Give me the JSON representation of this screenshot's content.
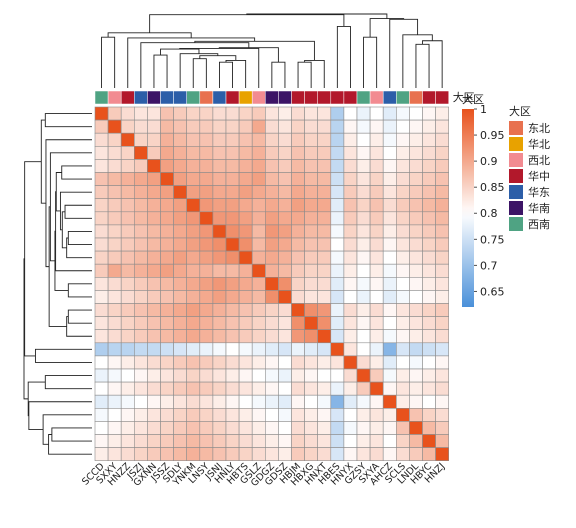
{
  "chart_data": {
    "type": "heatmap",
    "title": "",
    "labels": [
      "SCCD",
      "SXXY",
      "HNZZ",
      "JSZJ",
      "GXNN",
      "JSSZ",
      "SDLY",
      "YNKM",
      "LNSY",
      "JSNJ",
      "HNLY",
      "HBTS",
      "GSLZ",
      "GDGZ",
      "GDSZ",
      "HBJM",
      "HBXG",
      "HNXT",
      "HBES",
      "HNYX",
      "GZSY",
      "SXYA",
      "AHCZ",
      "SCLS",
      "LNDL",
      "HBYC",
      "HNZJ"
    ],
    "region_legend_title": "大区",
    "regions": [
      {
        "name": "东北",
        "color": "#E8714F"
      },
      {
        "name": "华北",
        "color": "#E8A200"
      },
      {
        "name": "西北",
        "color": "#F28B91"
      },
      {
        "name": "华中",
        "color": "#B2182B"
      },
      {
        "name": "华东",
        "color": "#2C5EA8"
      },
      {
        "name": "华南",
        "color": "#3C1466"
      },
      {
        "name": "西南",
        "color": "#4FA383"
      }
    ],
    "column_regions": [
      6,
      2,
      3,
      4,
      5,
      4,
      4,
      6,
      0,
      4,
      3,
      1,
      2,
      5,
      5,
      3,
      3,
      3,
      3,
      3,
      6,
      2,
      4,
      6,
      0,
      3,
      3
    ],
    "colorbar": {
      "title": "大区",
      "min": 0.62,
      "max": 1,
      "ticks": [
        1,
        0.95,
        0.9,
        0.85,
        0.8,
        0.75,
        0.7,
        0.65
      ],
      "low_color": "#4A90D9",
      "mid_color": "#FFFFFF",
      "high_color": "#E8521C",
      "mid_value": 0.8
    },
    "group_a_size": 18,
    "values": [
      [
        1,
        0.86,
        0.84,
        0.83,
        0.83,
        0.87,
        0.86,
        0.85,
        0.85,
        0.84,
        0.84,
        0.85,
        0.86,
        0.83,
        0.82,
        0.84,
        0.83,
        0.83,
        0.72,
        0.8,
        0.78,
        0.8,
        0.77,
        0.79,
        0.8,
        0.81,
        0.82
      ],
      [
        0.86,
        1,
        0.85,
        0.84,
        0.84,
        0.88,
        0.87,
        0.86,
        0.86,
        0.85,
        0.85,
        0.86,
        0.9,
        0.84,
        0.83,
        0.85,
        0.84,
        0.84,
        0.73,
        0.81,
        0.79,
        0.81,
        0.78,
        0.8,
        0.81,
        0.82,
        0.83
      ],
      [
        0.84,
        0.85,
        1,
        0.85,
        0.85,
        0.89,
        0.88,
        0.87,
        0.87,
        0.86,
        0.86,
        0.87,
        0.88,
        0.85,
        0.84,
        0.86,
        0.85,
        0.85,
        0.73,
        0.82,
        0.8,
        0.82,
        0.79,
        0.81,
        0.82,
        0.83,
        0.84
      ],
      [
        0.83,
        0.84,
        0.85,
        1,
        0.86,
        0.9,
        0.89,
        0.88,
        0.88,
        0.87,
        0.87,
        0.88,
        0.89,
        0.86,
        0.85,
        0.87,
        0.86,
        0.86,
        0.74,
        0.83,
        0.81,
        0.83,
        0.8,
        0.82,
        0.83,
        0.84,
        0.85
      ],
      [
        0.83,
        0.84,
        0.85,
        0.86,
        1,
        0.91,
        0.9,
        0.89,
        0.89,
        0.88,
        0.88,
        0.89,
        0.9,
        0.87,
        0.86,
        0.88,
        0.87,
        0.87,
        0.74,
        0.84,
        0.82,
        0.84,
        0.81,
        0.83,
        0.84,
        0.85,
        0.86
      ],
      [
        0.87,
        0.88,
        0.89,
        0.9,
        0.91,
        1,
        0.91,
        0.9,
        0.9,
        0.89,
        0.89,
        0.9,
        0.91,
        0.88,
        0.87,
        0.89,
        0.88,
        0.88,
        0.75,
        0.85,
        0.83,
        0.85,
        0.82,
        0.84,
        0.85,
        0.86,
        0.87
      ],
      [
        0.86,
        0.87,
        0.88,
        0.89,
        0.9,
        0.91,
        1,
        0.91,
        0.91,
        0.9,
        0.9,
        0.91,
        0.9,
        0.89,
        0.88,
        0.9,
        0.89,
        0.89,
        0.76,
        0.86,
        0.84,
        0.86,
        0.83,
        0.85,
        0.86,
        0.87,
        0.88
      ],
      [
        0.85,
        0.86,
        0.87,
        0.88,
        0.89,
        0.9,
        0.91,
        1,
        0.92,
        0.91,
        0.91,
        0.9,
        0.89,
        0.9,
        0.89,
        0.91,
        0.9,
        0.9,
        0.77,
        0.87,
        0.85,
        0.87,
        0.84,
        0.86,
        0.87,
        0.88,
        0.89
      ],
      [
        0.85,
        0.86,
        0.87,
        0.88,
        0.89,
        0.9,
        0.91,
        0.92,
        1,
        0.92,
        0.92,
        0.91,
        0.89,
        0.91,
        0.9,
        0.9,
        0.89,
        0.89,
        0.78,
        0.86,
        0.84,
        0.86,
        0.83,
        0.85,
        0.86,
        0.87,
        0.88
      ],
      [
        0.84,
        0.85,
        0.86,
        0.87,
        0.88,
        0.89,
        0.9,
        0.91,
        0.92,
        1,
        0.93,
        0.92,
        0.88,
        0.92,
        0.91,
        0.89,
        0.88,
        0.88,
        0.79,
        0.85,
        0.83,
        0.85,
        0.82,
        0.84,
        0.85,
        0.86,
        0.87
      ],
      [
        0.84,
        0.85,
        0.86,
        0.87,
        0.88,
        0.89,
        0.9,
        0.91,
        0.92,
        0.93,
        1,
        0.93,
        0.88,
        0.91,
        0.9,
        0.88,
        0.87,
        0.87,
        0.8,
        0.84,
        0.82,
        0.84,
        0.81,
        0.83,
        0.84,
        0.85,
        0.86
      ],
      [
        0.85,
        0.86,
        0.87,
        0.88,
        0.89,
        0.9,
        0.91,
        0.9,
        0.91,
        0.92,
        0.93,
        1,
        0.89,
        0.9,
        0.89,
        0.87,
        0.86,
        0.86,
        0.79,
        0.83,
        0.81,
        0.83,
        0.8,
        0.82,
        0.83,
        0.84,
        0.85
      ],
      [
        0.86,
        0.9,
        0.88,
        0.89,
        0.9,
        0.91,
        0.9,
        0.89,
        0.89,
        0.88,
        0.88,
        0.89,
        1,
        0.89,
        0.88,
        0.86,
        0.85,
        0.85,
        0.78,
        0.82,
        0.8,
        0.82,
        0.79,
        0.81,
        0.82,
        0.83,
        0.84
      ],
      [
        0.83,
        0.84,
        0.85,
        0.86,
        0.87,
        0.88,
        0.89,
        0.9,
        0.91,
        0.92,
        0.91,
        0.9,
        0.89,
        1,
        0.93,
        0.85,
        0.84,
        0.84,
        0.77,
        0.81,
        0.79,
        0.81,
        0.78,
        0.8,
        0.81,
        0.82,
        0.83
      ],
      [
        0.82,
        0.83,
        0.84,
        0.85,
        0.86,
        0.87,
        0.88,
        0.89,
        0.9,
        0.91,
        0.9,
        0.89,
        0.88,
        0.93,
        1,
        0.84,
        0.83,
        0.83,
        0.76,
        0.8,
        0.78,
        0.8,
        0.77,
        0.79,
        0.8,
        0.81,
        0.82
      ],
      [
        0.84,
        0.85,
        0.86,
        0.87,
        0.88,
        0.89,
        0.9,
        0.91,
        0.9,
        0.89,
        0.88,
        0.87,
        0.86,
        0.85,
        0.84,
        1,
        0.93,
        0.92,
        0.78,
        0.84,
        0.82,
        0.84,
        0.81,
        0.83,
        0.84,
        0.85,
        0.86
      ],
      [
        0.83,
        0.84,
        0.85,
        0.86,
        0.87,
        0.88,
        0.89,
        0.9,
        0.89,
        0.88,
        0.87,
        0.86,
        0.85,
        0.84,
        0.83,
        0.93,
        1,
        0.93,
        0.77,
        0.83,
        0.81,
        0.83,
        0.8,
        0.82,
        0.83,
        0.84,
        0.85
      ],
      [
        0.83,
        0.84,
        0.85,
        0.86,
        0.87,
        0.88,
        0.89,
        0.9,
        0.89,
        0.88,
        0.87,
        0.86,
        0.85,
        0.84,
        0.83,
        0.92,
        0.93,
        1,
        0.76,
        0.82,
        0.8,
        0.82,
        0.79,
        0.81,
        0.82,
        0.83,
        0.84
      ],
      [
        0.72,
        0.73,
        0.73,
        0.74,
        0.74,
        0.75,
        0.76,
        0.77,
        0.78,
        0.79,
        0.8,
        0.79,
        0.78,
        0.77,
        0.76,
        0.78,
        0.77,
        0.76,
        1,
        0.83,
        0.8,
        0.78,
        0.68,
        0.76,
        0.74,
        0.75,
        0.76
      ],
      [
        0.8,
        0.81,
        0.82,
        0.83,
        0.84,
        0.85,
        0.86,
        0.87,
        0.86,
        0.85,
        0.84,
        0.83,
        0.82,
        0.81,
        0.8,
        0.84,
        0.83,
        0.82,
        0.83,
        1,
        0.84,
        0.82,
        0.77,
        0.8,
        0.79,
        0.8,
        0.81
      ],
      [
        0.78,
        0.79,
        0.8,
        0.81,
        0.82,
        0.83,
        0.84,
        0.85,
        0.84,
        0.83,
        0.82,
        0.81,
        0.8,
        0.79,
        0.78,
        0.82,
        0.81,
        0.8,
        0.8,
        0.84,
        1,
        0.86,
        0.79,
        0.82,
        0.81,
        0.82,
        0.83
      ],
      [
        0.8,
        0.81,
        0.82,
        0.83,
        0.84,
        0.85,
        0.86,
        0.87,
        0.86,
        0.85,
        0.84,
        0.83,
        0.82,
        0.81,
        0.8,
        0.84,
        0.83,
        0.82,
        0.78,
        0.82,
        0.86,
        1,
        0.81,
        0.83,
        0.82,
        0.83,
        0.84
      ],
      [
        0.77,
        0.78,
        0.79,
        0.8,
        0.81,
        0.82,
        0.83,
        0.84,
        0.83,
        0.82,
        0.81,
        0.8,
        0.79,
        0.78,
        0.77,
        0.81,
        0.8,
        0.79,
        0.68,
        0.77,
        0.79,
        0.81,
        1,
        0.82,
        0.81,
        0.8,
        0.81
      ],
      [
        0.79,
        0.8,
        0.81,
        0.82,
        0.83,
        0.84,
        0.85,
        0.86,
        0.85,
        0.84,
        0.83,
        0.82,
        0.81,
        0.8,
        0.79,
        0.83,
        0.82,
        0.81,
        0.76,
        0.8,
        0.82,
        0.83,
        0.82,
        1,
        0.87,
        0.85,
        0.84
      ],
      [
        0.8,
        0.81,
        0.82,
        0.83,
        0.84,
        0.85,
        0.86,
        0.87,
        0.86,
        0.85,
        0.84,
        0.83,
        0.82,
        0.81,
        0.8,
        0.84,
        0.83,
        0.82,
        0.74,
        0.79,
        0.81,
        0.82,
        0.81,
        0.87,
        1,
        0.88,
        0.86
      ],
      [
        0.81,
        0.82,
        0.83,
        0.84,
        0.85,
        0.86,
        0.87,
        0.88,
        0.87,
        0.86,
        0.85,
        0.84,
        0.83,
        0.82,
        0.81,
        0.85,
        0.84,
        0.83,
        0.75,
        0.8,
        0.82,
        0.83,
        0.8,
        0.85,
        0.88,
        1,
        0.88
      ],
      [
        0.82,
        0.83,
        0.84,
        0.85,
        0.86,
        0.87,
        0.88,
        0.89,
        0.88,
        0.87,
        0.86,
        0.85,
        0.84,
        0.83,
        0.82,
        0.86,
        0.85,
        0.84,
        0.76,
        0.81,
        0.83,
        0.84,
        0.81,
        0.84,
        0.86,
        0.88,
        1
      ]
    ]
  }
}
